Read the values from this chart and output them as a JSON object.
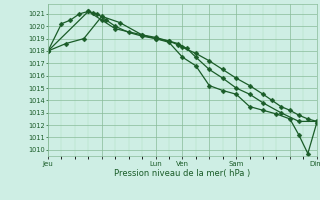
{
  "xlabel": "Pression niveau de la mer( hPa )",
  "bg_color": "#ceeee4",
  "grid_major_color": "#88bb99",
  "grid_minor_color": "#aaddbb",
  "line_color": "#1a5c28",
  "ylim": [
    1009.5,
    1021.8
  ],
  "yticks": [
    1010,
    1011,
    1012,
    1013,
    1014,
    1015,
    1016,
    1017,
    1018,
    1019,
    1020,
    1021
  ],
  "xtick_labels": [
    "Jeu",
    "",
    "Lun",
    "Ven",
    "",
    "Sam",
    "",
    "Dim"
  ],
  "xtick_positions": [
    0,
    24,
    48,
    60,
    72,
    84,
    108,
    120
  ],
  "x_total": 120,
  "series1_x": [
    0,
    6,
    10,
    14,
    18,
    20,
    22,
    26,
    30,
    36,
    42,
    48,
    54,
    58,
    60,
    66,
    72,
    78,
    84,
    90,
    96,
    100,
    104,
    108,
    112,
    116,
    120
  ],
  "series1_y": [
    1018.0,
    1020.2,
    1020.5,
    1021.0,
    1021.2,
    1021.1,
    1021.0,
    1020.5,
    1020.0,
    1019.5,
    1019.2,
    1019.0,
    1018.8,
    1018.5,
    1018.3,
    1017.8,
    1017.2,
    1016.5,
    1015.8,
    1015.2,
    1014.5,
    1014.0,
    1013.5,
    1013.2,
    1012.8,
    1012.5,
    1012.3
  ],
  "series2_x": [
    0,
    8,
    16,
    24,
    32,
    42,
    48,
    54,
    58,
    62,
    66,
    72,
    78,
    84,
    90,
    96,
    104,
    112,
    120
  ],
  "series2_y": [
    1018.0,
    1018.6,
    1019.0,
    1020.8,
    1020.3,
    1019.3,
    1019.1,
    1018.8,
    1018.6,
    1018.2,
    1017.5,
    1016.5,
    1015.8,
    1015.0,
    1014.5,
    1013.8,
    1013.0,
    1012.3,
    1012.3
  ],
  "series3_x": [
    0,
    18,
    24,
    30,
    42,
    48,
    54,
    60,
    66,
    72,
    78,
    84,
    90,
    96,
    102,
    108,
    112,
    116,
    120
  ],
  "series3_y": [
    1018.0,
    1021.2,
    1020.5,
    1019.8,
    1019.3,
    1019.0,
    1018.7,
    1017.5,
    1016.8,
    1015.2,
    1014.8,
    1014.5,
    1013.5,
    1013.2,
    1012.9,
    1012.5,
    1011.2,
    1009.7,
    1012.2
  ],
  "marker_size": 2.5,
  "line_width": 0.9
}
